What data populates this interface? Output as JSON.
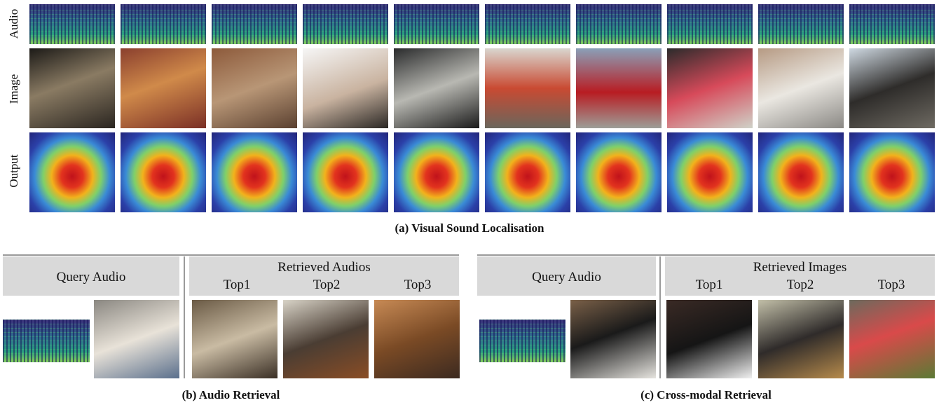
{
  "row_labels": [
    "Audio",
    "Image",
    "Output"
  ],
  "captions": {
    "a": "(a) Visual Sound Localisation",
    "b": "(b) Audio Retrieval",
    "c": "(c) Cross-modal Retrieval"
  },
  "panel_b": {
    "query_label": "Query Audio",
    "retrieved_label": "Retrieved  Audios",
    "top_labels": [
      "Top1",
      "Top2",
      "Top3"
    ]
  },
  "panel_c": {
    "query_label": "Query Audio",
    "retrieved_label": "Retrieved  Images",
    "top_labels": [
      "Top1",
      "Top2",
      "Top3"
    ]
  }
}
